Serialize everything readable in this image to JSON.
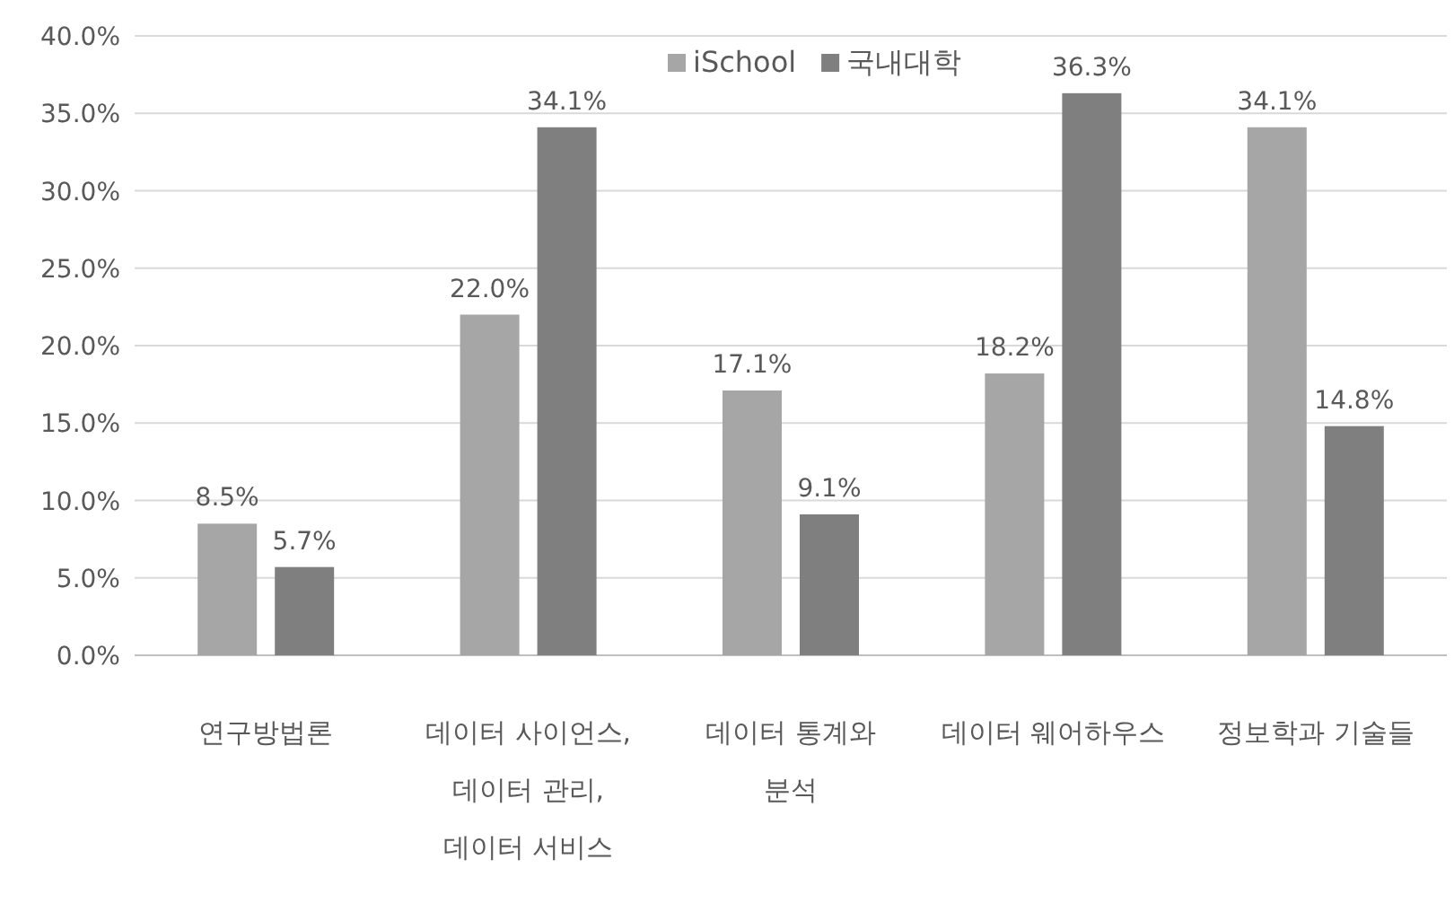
{
  "chart_data": {
    "type": "bar",
    "categories": [
      "연구방법론",
      "데이터 사이언스, 데이터 관리, 데이터 서비스",
      "데이터 통계와 분석",
      "데이터 웨어하우스",
      "정보학과 기술들"
    ],
    "series": [
      {
        "name": "iSchool",
        "color": "#a6a6a6",
        "values": [
          8.5,
          22.0,
          17.1,
          18.2,
          34.1
        ],
        "value_labels": [
          "8.5%",
          "22.0%",
          "17.1%",
          "18.2%",
          "34.1%"
        ]
      },
      {
        "name": "국내대학",
        "color": "#7f7f7f",
        "values": [
          5.7,
          34.1,
          9.1,
          36.3,
          14.8
        ],
        "value_labels": [
          "5.7%",
          "34.1%",
          "9.1%",
          "36.3%",
          "14.8%"
        ]
      }
    ],
    "ylim": [
      0,
      40
    ],
    "yticks": [
      {
        "value": 0,
        "label": "0.0%"
      },
      {
        "value": 5,
        "label": "5.0%"
      },
      {
        "value": 10,
        "label": "10.0%"
      },
      {
        "value": 15,
        "label": "15.0%"
      },
      {
        "value": 20,
        "label": "20.0%"
      },
      {
        "value": 25,
        "label": "25.0%"
      },
      {
        "value": 30,
        "label": "30.0%"
      },
      {
        "value": 35,
        "label": "35.0%"
      },
      {
        "value": 40,
        "label": "40.0%"
      }
    ],
    "grid": "y",
    "legend": "top"
  }
}
